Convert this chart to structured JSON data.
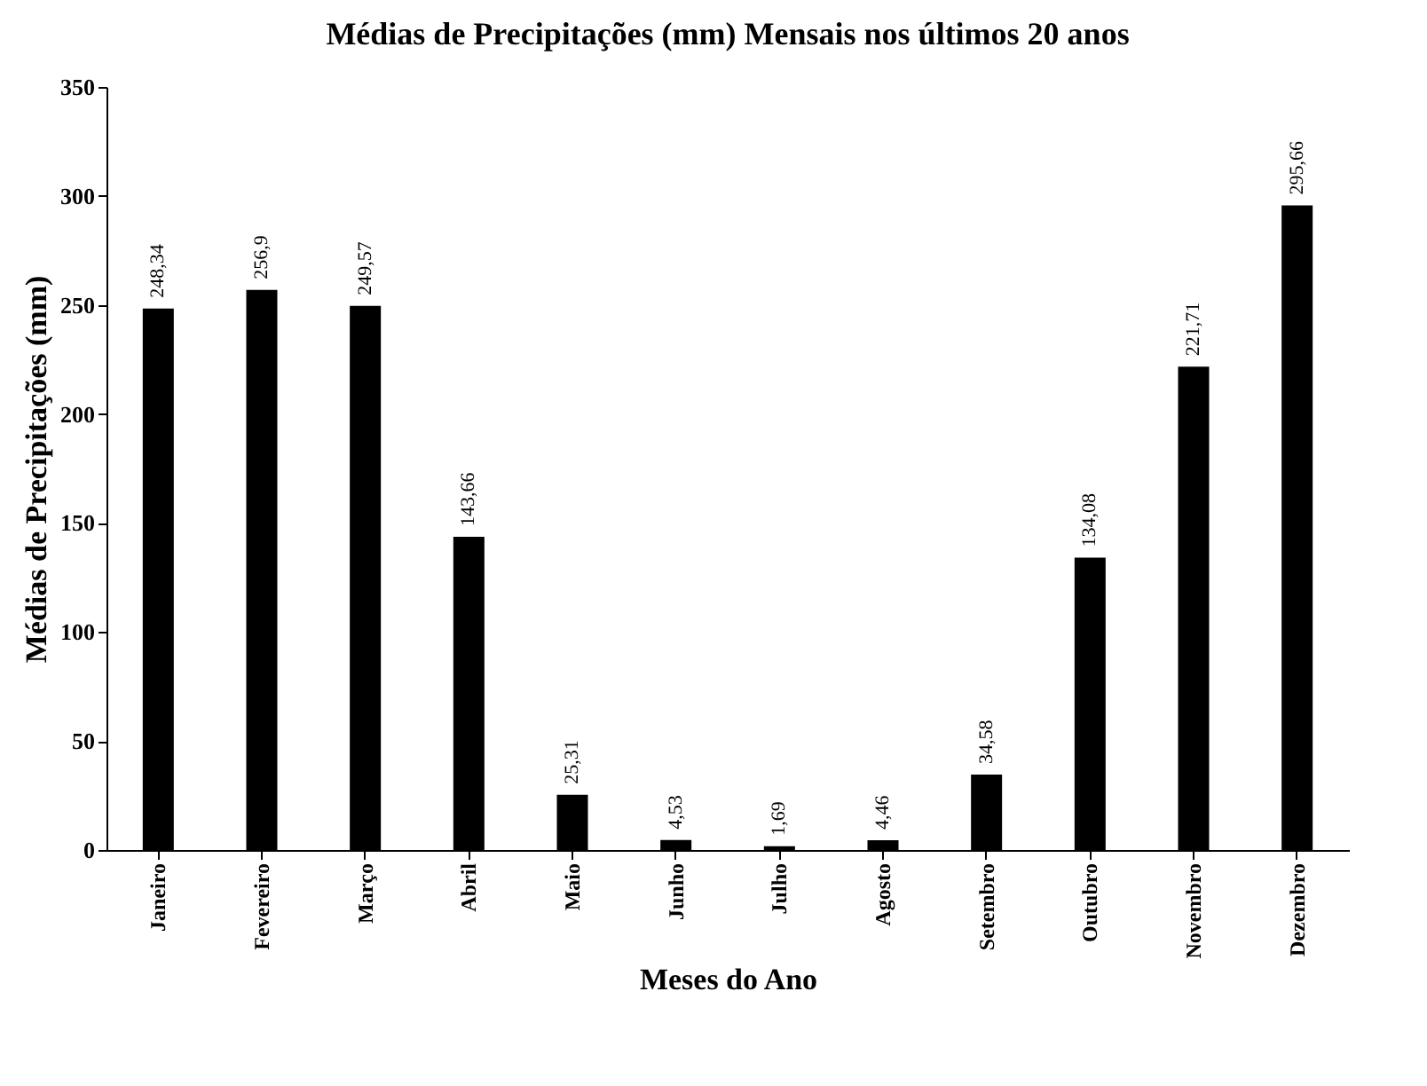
{
  "chart_data": {
    "type": "bar",
    "title": "Médias de Precipitações (mm) Mensais nos últimos 20 anos",
    "xlabel": "Meses do Ano",
    "ylabel": "Médias de Precipitações (mm)",
    "categories": [
      "Janeiro",
      "Fevereiro",
      "Março",
      "Abril",
      "Maio",
      "Junho",
      "Julho",
      "Agosto",
      "Setembro",
      "Outubro",
      "Novembro",
      "Dezembro"
    ],
    "values": [
      248.34,
      256.9,
      249.57,
      143.66,
      25.31,
      4.53,
      1.69,
      4.46,
      34.58,
      134.08,
      221.71,
      295.66
    ],
    "value_labels": [
      "248,34",
      "256,9",
      "249,57",
      "143,66",
      "25,31",
      "4,53",
      "1,69",
      "4,46",
      "34,58",
      "134,08",
      "221,71",
      "295,66"
    ],
    "color": "#000000",
    "ylim": [
      0,
      350
    ],
    "yticks": [
      0,
      50,
      100,
      150,
      200,
      250,
      300,
      350
    ],
    "grid": false
  }
}
